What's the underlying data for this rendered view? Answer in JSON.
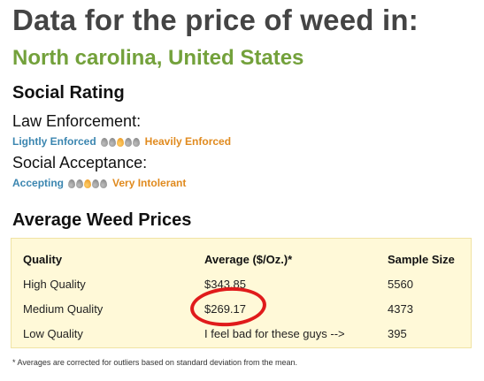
{
  "page": {
    "title": "Data for the price of weed in:",
    "location": "North carolina, United States"
  },
  "social": {
    "heading": "Social Rating",
    "law": {
      "label": "Law Enforcement:",
      "low_label": "Lightly Enforced",
      "high_label": "Heavily Enforced",
      "scale_max": 5,
      "level": 3
    },
    "acceptance": {
      "label": "Social Acceptance:",
      "low_label": "Accepting",
      "high_label": "Very Intolerant",
      "scale_max": 5,
      "level": 3
    }
  },
  "prices": {
    "heading": "Average Weed Prices",
    "columns": [
      "Quality",
      "Average ($/Oz.)*",
      "Sample Size"
    ],
    "rows": [
      {
        "quality": "High Quality",
        "average": "$343.85",
        "sample": "5560"
      },
      {
        "quality": "Medium Quality",
        "average": "$269.17",
        "sample": "4373"
      },
      {
        "quality": "Low Quality",
        "average": "I feel bad for these guys -->",
        "sample": "395"
      }
    ]
  },
  "footnote": "* Averages are corrected for outliers based on standard deviation from the mean.",
  "colors": {
    "title": "#444444",
    "location": "#73a13b",
    "low_label": "#3b86b0",
    "high_label": "#e08a1e",
    "table_bg": "#fff9d8",
    "highlight": "#e01b1b"
  }
}
